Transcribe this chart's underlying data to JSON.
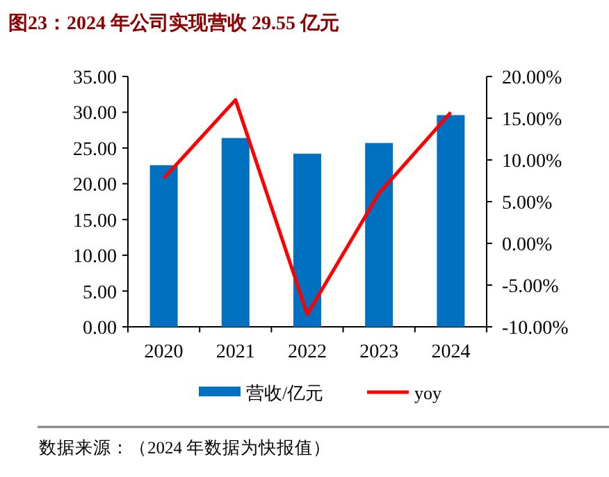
{
  "chart_data": {
    "type": "bar",
    "title": "图23：2024 年公司实现营收 29.55 亿元",
    "categories": [
      "2020",
      "2021",
      "2022",
      "2023",
      "2024"
    ],
    "series": [
      {
        "name": "营收/亿元",
        "color": "#0070c0",
        "values": [
          22.6,
          26.4,
          24.2,
          25.7,
          29.6
        ]
      },
      {
        "name": "yoy",
        "type": "line",
        "axis": "y2",
        "color": "#ff0000",
        "values": [
          7.8,
          17.2,
          -8.5,
          6.0,
          15.7
        ]
      }
    ],
    "ylim": [
      0,
      35
    ],
    "yticks": [
      {
        "value": 0,
        "label": "0.00"
      },
      {
        "value": 5,
        "label": "5.00"
      },
      {
        "value": 10,
        "label": "10.00"
      },
      {
        "value": 15,
        "label": "15.00"
      },
      {
        "value": 20,
        "label": "20.00"
      },
      {
        "value": 25,
        "label": "25.00"
      },
      {
        "value": 30,
        "label": "30.00"
      },
      {
        "value": 35,
        "label": "35.00"
      }
    ],
    "y2lim": [
      -10,
      20
    ],
    "y2ticks": [
      {
        "value": -10,
        "label": "-10.00%"
      },
      {
        "value": -5,
        "label": "-5.00%"
      },
      {
        "value": 0,
        "label": "0.00%"
      },
      {
        "value": 5,
        "label": "5.00%"
      },
      {
        "value": 10,
        "label": "10.00%"
      },
      {
        "value": 15,
        "label": "15.00%"
      },
      {
        "value": 20,
        "label": "20.00%"
      }
    ],
    "legend": "bottom",
    "annotations": [
      "数据来源：（2024 年数据为快报值）"
    ]
  }
}
